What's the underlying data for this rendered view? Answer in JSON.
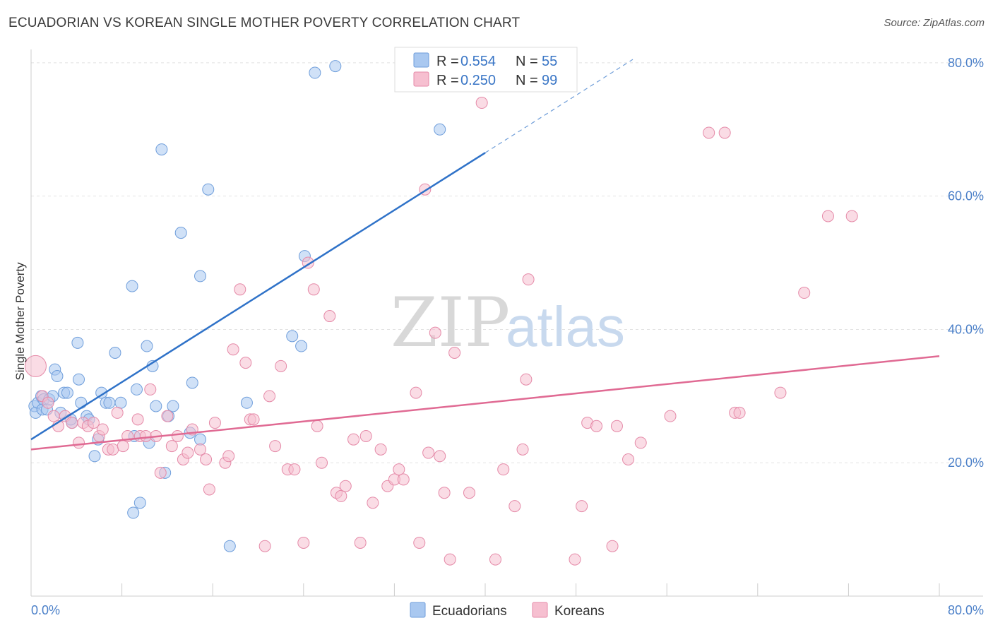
{
  "chart_data": {
    "type": "scatter",
    "title": "ECUADORIAN VS KOREAN SINGLE MOTHER POVERTY CORRELATION CHART",
    "source": "Source: ZipAtlas.com",
    "ylabel": "Single Mother Poverty",
    "xlabel": "",
    "xlim": [
      0,
      80
    ],
    "ylim": [
      0,
      82
    ],
    "y_ticks": [
      {
        "value": 20,
        "label": "20.0%"
      },
      {
        "value": 40,
        "label": "40.0%"
      },
      {
        "value": 60,
        "label": "60.0%"
      },
      {
        "value": 80,
        "label": "80.0%"
      }
    ],
    "x_tick_labels": {
      "min": "0.0%",
      "max": "80.0%"
    },
    "grid": true,
    "legend_position": "top-center",
    "watermark": {
      "zip": "ZIP",
      "atlas": "atlas"
    },
    "series": [
      {
        "name": "Ecuadorians",
        "color": "#a9c8f0",
        "stroke": "#6f9edb",
        "line_color": "#2f72c8",
        "stats": {
          "r_label": "R =",
          "r": "0.554",
          "n_label": "N =",
          "n": "55"
        },
        "trend": {
          "x0": 0,
          "y0": 23.5,
          "x1": 40,
          "y1": 66.5,
          "dash_x1": 53,
          "dash_y1": 80.5
        },
        "points": [
          [
            0.3,
            28.5
          ],
          [
            0.4,
            27.5
          ],
          [
            0.6,
            29
          ],
          [
            0.9,
            30
          ],
          [
            1.0,
            28
          ],
          [
            1.1,
            29.5
          ],
          [
            1.4,
            28
          ],
          [
            1.6,
            29.5
          ],
          [
            1.9,
            30
          ],
          [
            2.1,
            34
          ],
          [
            2.3,
            33
          ],
          [
            2.6,
            27.5
          ],
          [
            2.9,
            30.5
          ],
          [
            3.2,
            30.5
          ],
          [
            3.6,
            26
          ],
          [
            4.1,
            38
          ],
          [
            4.2,
            32.5
          ],
          [
            4.4,
            29
          ],
          [
            4.9,
            27
          ],
          [
            5.1,
            26.5
          ],
          [
            5.6,
            21
          ],
          [
            5.9,
            23.5
          ],
          [
            6.2,
            30.5
          ],
          [
            6.6,
            29
          ],
          [
            6.9,
            29
          ],
          [
            7.4,
            36.5
          ],
          [
            7.9,
            29
          ],
          [
            8.9,
            46.5
          ],
          [
            9.1,
            24
          ],
          [
            9.3,
            31
          ],
          [
            10.2,
            37.5
          ],
          [
            10.4,
            23
          ],
          [
            10.7,
            34.5
          ],
          [
            11.0,
            28.5
          ],
          [
            11.5,
            67
          ],
          [
            11.8,
            18.5
          ],
          [
            12.1,
            27
          ],
          [
            12.5,
            28.5
          ],
          [
            13.2,
            54.5
          ],
          [
            14.0,
            24.5
          ],
          [
            14.2,
            32
          ],
          [
            14.9,
            23.5
          ],
          [
            14.9,
            48
          ],
          [
            15.6,
            61
          ],
          [
            17.5,
            7.5
          ],
          [
            19.0,
            29
          ],
          [
            23.0,
            39
          ],
          [
            23.8,
            37.5
          ],
          [
            24.1,
            51
          ],
          [
            25.0,
            78.5
          ],
          [
            26.8,
            79.5
          ],
          [
            36.0,
            70
          ],
          [
            9.0,
            12.5
          ],
          [
            9.6,
            14
          ],
          [
            3.5,
            26.5
          ]
        ]
      },
      {
        "name": "Koreans",
        "color": "#f6bfd0",
        "stroke": "#e58aa8",
        "line_color": "#e06a93",
        "stats": {
          "r_label": "R =",
          "r": "0.250",
          "n_label": "N =",
          "n": "99"
        },
        "trend": {
          "x0": 0,
          "y0": 22,
          "x1": 80,
          "y1": 36
        },
        "points": [
          [
            0.4,
            34.5
          ],
          [
            1.0,
            30
          ],
          [
            1.5,
            29
          ],
          [
            2.0,
            27
          ],
          [
            2.4,
            25.5
          ],
          [
            3.0,
            27
          ],
          [
            3.6,
            26
          ],
          [
            4.2,
            23
          ],
          [
            4.6,
            26
          ],
          [
            5.0,
            25.5
          ],
          [
            5.5,
            26
          ],
          [
            6.0,
            24
          ],
          [
            6.3,
            25
          ],
          [
            6.8,
            22
          ],
          [
            7.2,
            22
          ],
          [
            7.6,
            27.5
          ],
          [
            8.1,
            22.5
          ],
          [
            8.5,
            24
          ],
          [
            9.4,
            26.5
          ],
          [
            9.6,
            24
          ],
          [
            10.1,
            24
          ],
          [
            10.5,
            31
          ],
          [
            11.0,
            24
          ],
          [
            11.4,
            18.5
          ],
          [
            12.0,
            27
          ],
          [
            12.4,
            22.5
          ],
          [
            12.9,
            24
          ],
          [
            13.4,
            20.5
          ],
          [
            13.8,
            21.5
          ],
          [
            14.2,
            25
          ],
          [
            14.9,
            22
          ],
          [
            15.4,
            20.5
          ],
          [
            15.7,
            16
          ],
          [
            16.2,
            26
          ],
          [
            17.1,
            20
          ],
          [
            17.4,
            21
          ],
          [
            17.8,
            37
          ],
          [
            18.4,
            46
          ],
          [
            18.9,
            35
          ],
          [
            19.3,
            26.5
          ],
          [
            19.6,
            26.5
          ],
          [
            20.6,
            7.5
          ],
          [
            21.0,
            30
          ],
          [
            21.5,
            22.5
          ],
          [
            22.0,
            34.5
          ],
          [
            22.6,
            19
          ],
          [
            23.2,
            19
          ],
          [
            24.0,
            8
          ],
          [
            24.4,
            50
          ],
          [
            24.9,
            46
          ],
          [
            25.2,
            25.5
          ],
          [
            25.6,
            20
          ],
          [
            26.3,
            42
          ],
          [
            26.9,
            15.5
          ],
          [
            27.3,
            15
          ],
          [
            27.7,
            16.5
          ],
          [
            28.4,
            23.5
          ],
          [
            29.0,
            8
          ],
          [
            29.5,
            24
          ],
          [
            30.1,
            14
          ],
          [
            30.8,
            22
          ],
          [
            31.4,
            16.5
          ],
          [
            32.0,
            17.5
          ],
          [
            32.4,
            19
          ],
          [
            32.8,
            17.5
          ],
          [
            33.9,
            30.5
          ],
          [
            34.2,
            8
          ],
          [
            34.7,
            61
          ],
          [
            35.0,
            21.5
          ],
          [
            35.6,
            39.5
          ],
          [
            36.0,
            21
          ],
          [
            36.4,
            15.5
          ],
          [
            36.9,
            5.5
          ],
          [
            37.3,
            36.5
          ],
          [
            38.6,
            15.5
          ],
          [
            39.7,
            74
          ],
          [
            40.9,
            5.5
          ],
          [
            41.6,
            19
          ],
          [
            42.6,
            13.5
          ],
          [
            43.3,
            22
          ],
          [
            43.6,
            32.5
          ],
          [
            43.8,
            47.5
          ],
          [
            47.9,
            5.5
          ],
          [
            48.5,
            13.5
          ],
          [
            49.0,
            26
          ],
          [
            49.8,
            25.5
          ],
          [
            51.2,
            7.5
          ],
          [
            51.6,
            25.5
          ],
          [
            52.6,
            20.5
          ],
          [
            53.7,
            23
          ],
          [
            56.3,
            27
          ],
          [
            59.7,
            69.5
          ],
          [
            61.1,
            69.5
          ],
          [
            62.0,
            27.5
          ],
          [
            62.4,
            27.5
          ],
          [
            66.0,
            30.5
          ],
          [
            68.1,
            45.5
          ],
          [
            70.2,
            57
          ],
          [
            72.3,
            57
          ]
        ]
      }
    ]
  },
  "legend": {
    "items": [
      {
        "label": "Ecuadorians"
      },
      {
        "label": "Koreans"
      }
    ]
  }
}
